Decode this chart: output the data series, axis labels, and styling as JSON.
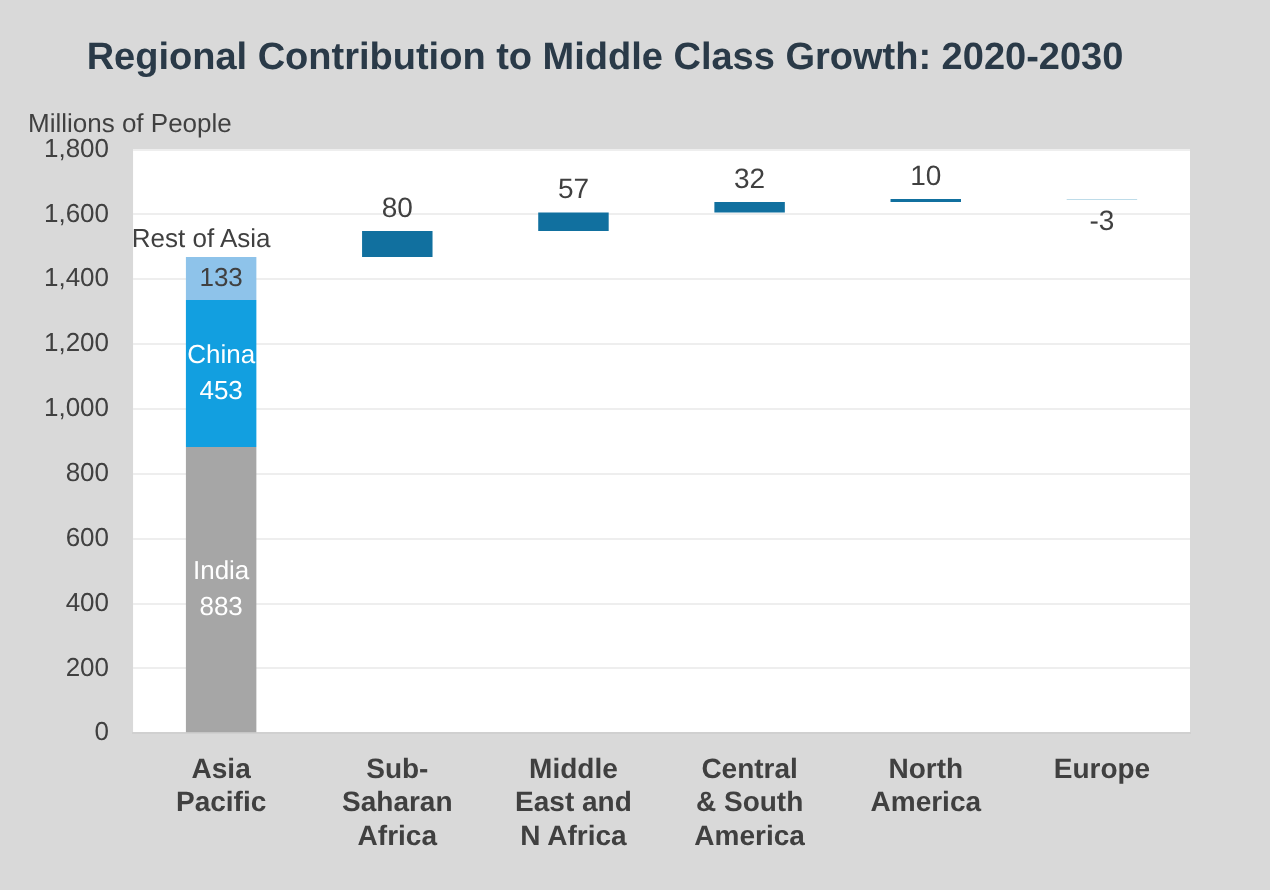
{
  "chart_data": {
    "type": "bar",
    "title": "Regional Contribution to Middle Class Growth: 2020-2030",
    "ylabel": "Millions of People",
    "categories": [
      "Asia Pacific",
      "Sub-Saharan Africa",
      "Middle East and N Africa",
      "Central & South America",
      "North America",
      "Europe"
    ],
    "stacked": true,
    "series": [
      {
        "name": "India",
        "color": "#a6a6a6",
        "values": [
          883,
          null,
          null,
          null,
          null,
          null
        ]
      },
      {
        "name": "China",
        "color": "#129fe0",
        "values": [
          453,
          null,
          null,
          null,
          null,
          null
        ]
      },
      {
        "name": "Rest of Asia",
        "color": "#8ec3ea",
        "values": [
          133,
          null,
          null,
          null,
          null,
          null
        ]
      },
      {
        "colors": [
          null,
          "#11709f",
          "#11709f",
          "#11709f",
          "#11709f",
          "#a9d0e2"
        ],
        "values": [
          null,
          80,
          57,
          32,
          10,
          -3
        ],
        "base": [
          null,
          1469,
          1549,
          1606,
          1638,
          1648
        ]
      }
    ],
    "ylim": [
      0,
      1800
    ],
    "yticks": [
      0,
      200,
      400,
      600,
      800,
      {
        "value": 1000,
        "label": "1,000"
      },
      {
        "value": 1200,
        "label": "1,200"
      },
      {
        "value": 1400,
        "label": "1,400"
      },
      {
        "value": 1600,
        "label": "1,600"
      },
      {
        "value": 1800,
        "label": "1,800"
      }
    ],
    "grid": "y",
    "data_labels": true,
    "legend": false
  }
}
